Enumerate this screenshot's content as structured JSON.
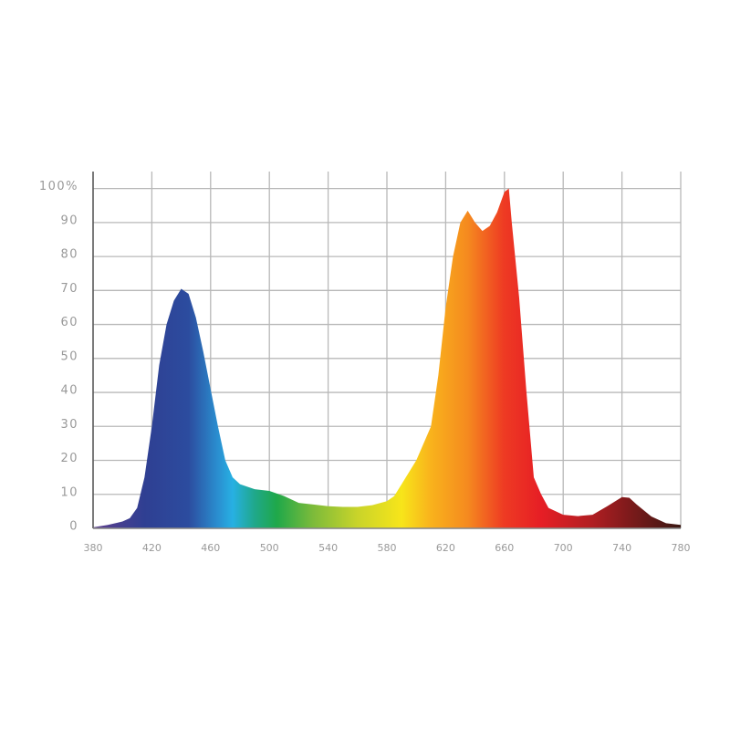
{
  "chart_data": {
    "type": "area",
    "x": [
      380,
      390,
      400,
      405,
      410,
      415,
      420,
      425,
      430,
      435,
      440,
      445,
      450,
      455,
      460,
      465,
      470,
      475,
      480,
      490,
      500,
      510,
      520,
      530,
      540,
      550,
      560,
      570,
      580,
      585,
      590,
      600,
      610,
      615,
      620,
      625,
      630,
      635,
      640,
      645,
      650,
      655,
      660,
      663,
      665,
      670,
      675,
      680,
      685,
      690,
      700,
      710,
      720,
      730,
      740,
      745,
      750,
      760,
      770,
      780
    ],
    "values": [
      0.3,
      1,
      2,
      3,
      6,
      15,
      30,
      48,
      60,
      67,
      70.5,
      69,
      62,
      52,
      41,
      30,
      20,
      15,
      13,
      11.5,
      11,
      9.5,
      7.5,
      7,
      6.5,
      6.3,
      6.3,
      6.8,
      8,
      9.5,
      13,
      20,
      30,
      45,
      65,
      80,
      90,
      93.5,
      90,
      87.5,
      89,
      93,
      99,
      100,
      90,
      68,
      40,
      15,
      10,
      6,
      4,
      3.6,
      4,
      6.5,
      9.2,
      9,
      7,
      3.5,
      1.5,
      1
    ],
    "color_stops": [
      {
        "x": 380,
        "color": "#5e3f8e"
      },
      {
        "x": 415,
        "color": "#2f3f92"
      },
      {
        "x": 445,
        "color": "#2c4c9f"
      },
      {
        "x": 465,
        "color": "#2a8fd0"
      },
      {
        "x": 475,
        "color": "#27b0e3"
      },
      {
        "x": 490,
        "color": "#1fa88a"
      },
      {
        "x": 505,
        "color": "#1fa84a"
      },
      {
        "x": 530,
        "color": "#7dbb3a"
      },
      {
        "x": 560,
        "color": "#c9d42a"
      },
      {
        "x": 590,
        "color": "#f7e51a"
      },
      {
        "x": 610,
        "color": "#f9b21c"
      },
      {
        "x": 635,
        "color": "#f58a1f"
      },
      {
        "x": 660,
        "color": "#ee3a23"
      },
      {
        "x": 685,
        "color": "#e61e25"
      },
      {
        "x": 720,
        "color": "#b01e22"
      },
      {
        "x": 745,
        "color": "#7d1a1b"
      },
      {
        "x": 780,
        "color": "#3a1712"
      }
    ],
    "xlim": [
      380,
      780
    ],
    "ylim": [
      0,
      105
    ],
    "xticks": [
      380,
      420,
      460,
      500,
      540,
      580,
      620,
      660,
      700,
      740,
      780
    ],
    "yticks": [
      0,
      10,
      20,
      30,
      40,
      50,
      60,
      70,
      80,
      90,
      {
        "value": 100,
        "label": "100%"
      }
    ],
    "grid": true
  }
}
